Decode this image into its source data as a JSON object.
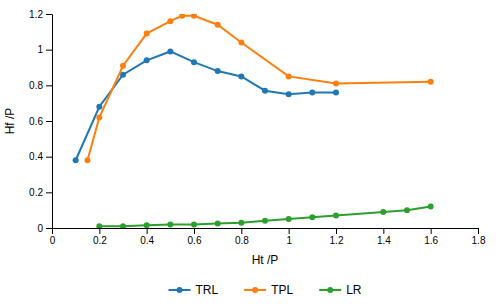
{
  "chart_data": {
    "type": "line",
    "x_label": "Ht /P",
    "y_label": "Hf /P",
    "series": [
      {
        "name": "TRL",
        "x": [
          0.1,
          0.2,
          0.3,
          0.4,
          0.5,
          0.6,
          0.7,
          0.8,
          0.9,
          1.0,
          1.1,
          1.2
        ],
        "values": [
          0.38,
          0.68,
          0.86,
          0.94,
          0.99,
          0.93,
          0.88,
          0.85,
          0.77,
          0.75,
          0.76,
          0.76
        ]
      },
      {
        "name": "TPL",
        "x": [
          0.15,
          0.2,
          0.3,
          0.4,
          0.5,
          0.55,
          0.6,
          0.7,
          0.8,
          1.0,
          1.2,
          1.6
        ],
        "values": [
          0.38,
          0.62,
          0.91,
          1.09,
          1.16,
          1.19,
          1.19,
          1.14,
          1.04,
          0.85,
          0.81,
          0.82
        ]
      },
      {
        "name": "LR",
        "x": [
          0.2,
          0.3,
          0.4,
          0.5,
          0.6,
          0.7,
          0.8,
          0.9,
          1.0,
          1.1,
          1.2,
          1.4,
          1.5,
          1.6
        ],
        "values": [
          0.01,
          0.01,
          0.015,
          0.02,
          0.02,
          0.025,
          0.03,
          0.04,
          0.05,
          0.06,
          0.07,
          0.09,
          0.1,
          0.12
        ]
      }
    ],
    "xlim": [
      0,
      1.8
    ],
    "ylim": [
      0.0,
      1.2
    ],
    "xticks": [
      0,
      0.2,
      0.4,
      0.6,
      0.8,
      1,
      1.2,
      1.4,
      1.6,
      1.8
    ],
    "yticks": [
      0,
      0.2,
      0.4,
      0.6,
      0.8,
      1,
      1.2
    ],
    "marker": "circle",
    "grid": false,
    "legend": "bottom"
  }
}
